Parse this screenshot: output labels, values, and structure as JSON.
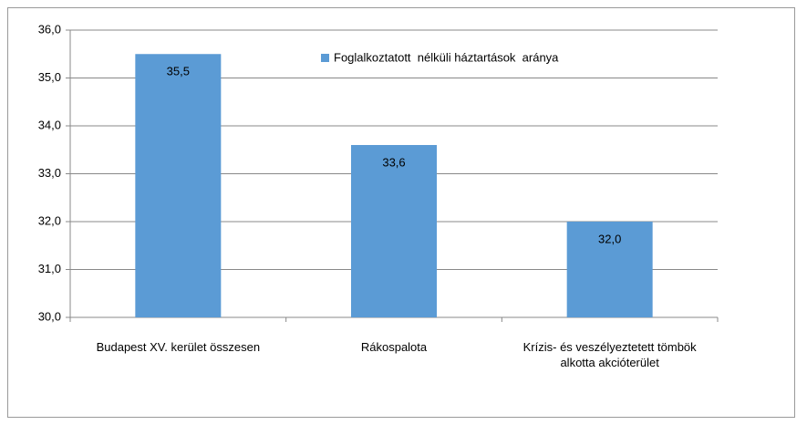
{
  "chart_data": {
    "type": "bar",
    "categories": [
      "Budapest XV. kerület összesen",
      "Rákospalota",
      "Krízis- és veszélyeztetett tömbök alkotta akcióterület"
    ],
    "series": [
      {
        "name": "Foglalkoztatott  nélküli háztartások  aránya",
        "color": "#5b9bd5",
        "values": [
          35.5,
          33.6,
          32.0
        ],
        "value_labels": [
          "35,5",
          "33,6",
          "32,0"
        ]
      }
    ],
    "ylim": [
      30,
      36
    ],
    "yticks": [
      {
        "value": 30,
        "label": "30,0"
      },
      {
        "value": 31,
        "label": "31,0"
      },
      {
        "value": 32,
        "label": "32,0"
      },
      {
        "value": 33,
        "label": "33,0"
      },
      {
        "value": 34,
        "label": "34,0"
      },
      {
        "value": 35,
        "label": "35,0"
      },
      {
        "value": 36,
        "label": "36,0"
      }
    ],
    "grid": true,
    "legend": "top"
  }
}
